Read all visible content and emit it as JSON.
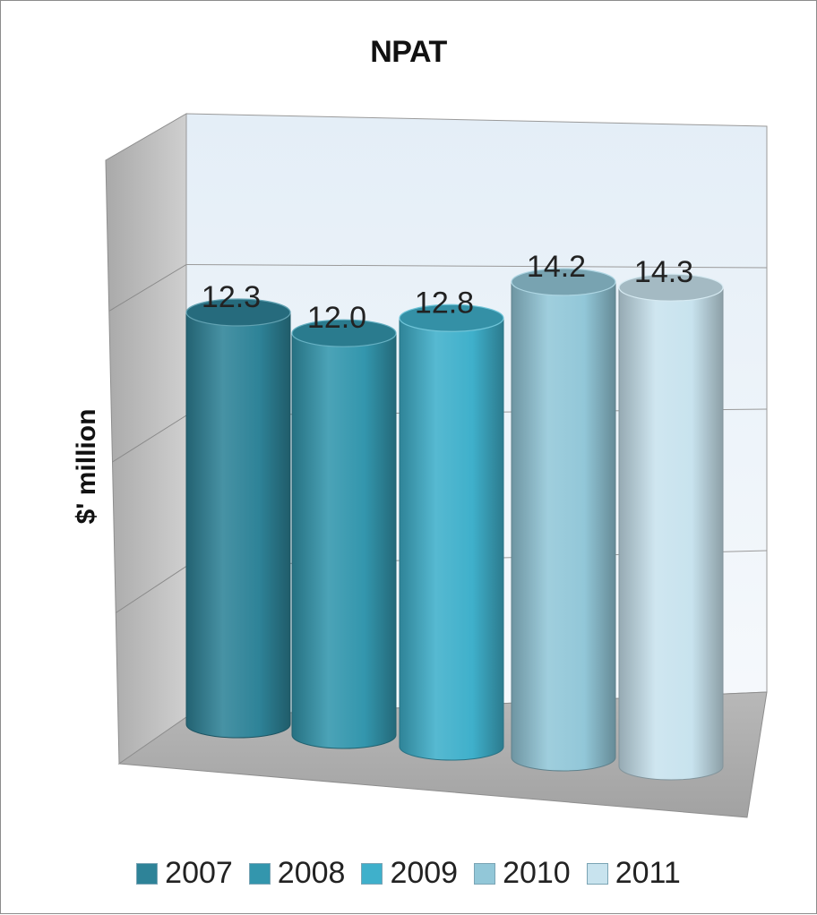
{
  "chart_data": {
    "type": "bar",
    "title": "NPAT",
    "ylabel": "$' million",
    "xlabel": "",
    "ylim": [
      0,
      16
    ],
    "grid": true,
    "legend_position": "bottom",
    "categories": [
      "2007",
      "2008",
      "2009",
      "2010",
      "2011"
    ],
    "values": [
      12.3,
      12.0,
      12.8,
      14.2,
      14.3
    ],
    "data_labels": [
      "12.3",
      "12.0",
      "12.8",
      "14.2",
      "14.3"
    ],
    "colors": [
      "#2e8398",
      "#3396ad",
      "#3fb0cb",
      "#92c7d8",
      "#c8e3ee"
    ],
    "legend": [
      "2007",
      "2008",
      "2009",
      "2010",
      "2011"
    ]
  }
}
